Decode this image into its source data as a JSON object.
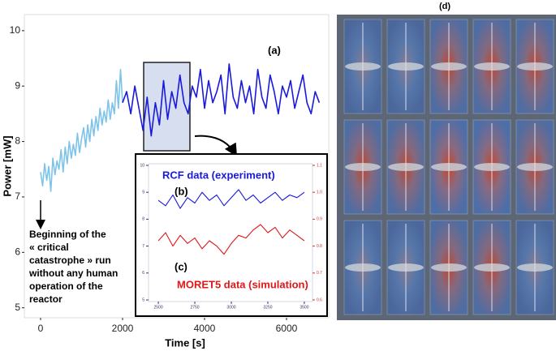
{
  "chart_data": [
    {
      "type": "line",
      "x_label": "Time [s]",
      "y_label": "Power [mW]",
      "xlim": [
        -396,
        7030
      ],
      "ylim": [
        4.82,
        10.29
      ],
      "xticks": [
        0,
        2000,
        4000,
        6000
      ],
      "yticks": [
        5,
        6,
        7,
        8,
        9,
        10
      ],
      "series": [
        {
          "color": "#7ec3ea",
          "x": [
            0,
            50,
            100,
            150,
            200,
            250,
            300,
            350,
            400,
            450,
            500,
            550,
            600,
            650,
            700,
            750,
            800,
            850,
            900,
            950,
            1000,
            1050,
            1100,
            1150,
            1200,
            1250,
            1300,
            1350,
            1400,
            1450,
            1500,
            1550,
            1600,
            1650,
            1700,
            1750,
            1800,
            1850,
            1900,
            1950,
            2000
          ],
          "values": [
            7.45,
            7.2,
            7.6,
            7.3,
            7.55,
            7.1,
            7.7,
            7.4,
            7.65,
            7.5,
            7.85,
            7.45,
            7.9,
            7.6,
            8.0,
            7.7,
            7.95,
            7.75,
            8.15,
            7.8,
            8.05,
            8.25,
            7.9,
            8.3,
            8.0,
            8.4,
            8.1,
            8.45,
            8.2,
            8.6,
            8.3,
            8.55,
            8.35,
            8.75,
            8.4,
            8.7,
            8.5,
            9.1,
            8.6,
            9.3,
            8.7
          ]
        },
        {
          "color": "#1a1adb",
          "x": [
            2000,
            2100,
            2200,
            2300,
            2400,
            2500,
            2600,
            2700,
            2800,
            2900,
            3000,
            3100,
            3200,
            3300,
            3400,
            3500,
            3600,
            3700,
            3800,
            3900,
            4000,
            4100,
            4200,
            4300,
            4400,
            4500,
            4600,
            4700,
            4800,
            4900,
            5000,
            5100,
            5200,
            5300,
            5400,
            5500,
            5600,
            5700,
            5800,
            5900,
            6000,
            6100,
            6200,
            6300,
            6400,
            6500,
            6600,
            6700,
            6800
          ],
          "values": [
            8.7,
            8.9,
            8.5,
            9.0,
            8.6,
            8.2,
            8.8,
            8.1,
            8.7,
            8.3,
            9.1,
            8.4,
            8.9,
            8.6,
            9.2,
            8.7,
            8.5,
            9.0,
            8.8,
            9.3,
            8.6,
            9.1,
            8.7,
            8.9,
            9.2,
            8.5,
            9.4,
            8.8,
            8.6,
            9.1,
            8.7,
            9.0,
            8.5,
            9.3,
            8.8,
            8.6,
            9.2,
            8.9,
            8.5,
            9.0,
            8.8,
            9.1,
            8.6,
            8.9,
            9.2,
            8.7,
            8.5,
            8.9,
            8.7
          ]
        }
      ],
      "annotations": [
        {
          "text": "(a)"
        }
      ],
      "note_lines": [
        "Beginning of the",
        "« critical",
        "catastrophe » run",
        "without any human",
        "operation of the",
        "reactor"
      ]
    },
    {
      "type": "line",
      "xlim": [
        2433,
        3556
      ],
      "ylim": [
        4.94,
        10.06
      ],
      "y2lim": [
        0.594,
        1.106
      ],
      "xticks": [
        2500,
        2750,
        3000,
        3250,
        3500
      ],
      "yticks": [
        5,
        6,
        7,
        8,
        9,
        10
      ],
      "y2ticks": [
        0.6,
        0.7,
        0.8,
        0.9,
        {
          "value": 1,
          "label": "1.0"
        },
        1.1
      ],
      "x": [
        2500,
        2550,
        2600,
        2650,
        2700,
        2750,
        2800,
        2850,
        2900,
        2950,
        3000,
        3050,
        3100,
        3150,
        3200,
        3250,
        3300,
        3350,
        3400,
        3450,
        3500
      ],
      "series": [
        {
          "name": "RCF data (experiment)",
          "color": "#1a1adb",
          "values": [
            8.7,
            8.5,
            8.9,
            8.4,
            8.8,
            8.6,
            9.0,
            8.7,
            8.9,
            8.5,
            8.8,
            9.1,
            8.7,
            8.9,
            8.6,
            8.8,
            9.0,
            8.7,
            8.9,
            8.8,
            9.0
          ]
        },
        {
          "name": "MORET5 data (simulation)",
          "color": "#e01818",
          "axis": "y2",
          "values": [
            0.82,
            0.85,
            0.8,
            0.84,
            0.81,
            0.83,
            0.79,
            0.82,
            0.8,
            0.77,
            0.81,
            0.84,
            0.83,
            0.86,
            0.88,
            0.85,
            0.87,
            0.83,
            0.86,
            0.84,
            0.82
          ]
        }
      ],
      "annotations": [
        {
          "text": "(b)"
        },
        {
          "text": "(c)"
        }
      ]
    }
  ],
  "panel_d": {
    "label": "(d)"
  }
}
